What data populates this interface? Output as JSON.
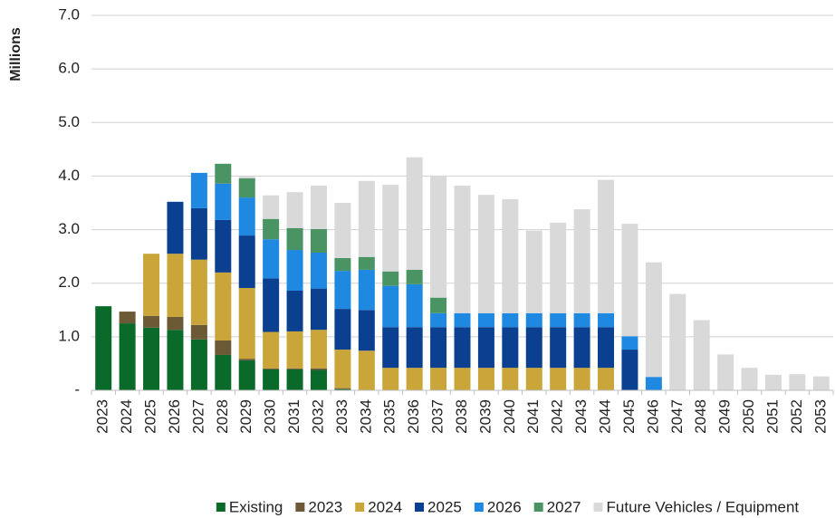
{
  "chart_data": {
    "type": "stacked_bar",
    "y_axis_label": "Millions",
    "categories": [
      "2023",
      "2024",
      "2025",
      "2026",
      "2027",
      "2028",
      "2029",
      "2030",
      "2031",
      "2032",
      "2033",
      "2034",
      "2035",
      "2036",
      "2037",
      "2038",
      "2039",
      "2040",
      "2041",
      "2042",
      "2043",
      "2044",
      "2045",
      "2046",
      "2047",
      "2048",
      "2049",
      "2050",
      "2051",
      "2052",
      "2053"
    ],
    "series": [
      {
        "name": "Existing",
        "color": "#0a6a2a",
        "values": [
          1.57,
          1.25,
          1.17,
          1.13,
          0.95,
          0.66,
          0.56,
          0.39,
          0.39,
          0.38,
          0.02,
          0,
          0,
          0,
          0,
          0,
          0,
          0,
          0,
          0,
          0,
          0,
          0,
          0,
          0,
          0,
          0,
          0,
          0,
          0,
          0
        ]
      },
      {
        "name": "2023",
        "color": "#6b5a35",
        "values": [
          0,
          0.22,
          0.22,
          0.24,
          0.27,
          0.27,
          0.03,
          0.02,
          0.02,
          0.03,
          0.02,
          0,
          0,
          0,
          0,
          0,
          0,
          0,
          0,
          0,
          0,
          0,
          0,
          0,
          0,
          0,
          0,
          0,
          0,
          0,
          0
        ]
      },
      {
        "name": "2024",
        "color": "#c9a53a",
        "values": [
          0,
          0,
          1.16,
          1.18,
          1.22,
          1.27,
          1.32,
          0.68,
          0.69,
          0.72,
          0.72,
          0.74,
          0.42,
          0.42,
          0.42,
          0.42,
          0.42,
          0.42,
          0.42,
          0.42,
          0.42,
          0.42,
          0,
          0,
          0,
          0,
          0,
          0,
          0,
          0,
          0
        ]
      },
      {
        "name": "2025",
        "color": "#0b3f8f",
        "values": [
          0,
          0,
          0,
          0.97,
          0.96,
          0.98,
          0.98,
          1.0,
          0.76,
          0.77,
          0.76,
          0.76,
          0.76,
          0.76,
          0.76,
          0.76,
          0.76,
          0.76,
          0.76,
          0.76,
          0.76,
          0.76,
          0.76,
          0,
          0,
          0,
          0,
          0,
          0,
          0,
          0
        ]
      },
      {
        "name": "2026",
        "color": "#1f88e0",
        "values": [
          0,
          0,
          0,
          0,
          0.66,
          0.68,
          0.71,
          0.73,
          0.76,
          0.67,
          0.71,
          0.75,
          0.77,
          0.8,
          0.26,
          0.26,
          0.26,
          0.26,
          0.26,
          0.26,
          0.26,
          0.26,
          0.25,
          0.25,
          0,
          0,
          0,
          0,
          0,
          0,
          0
        ]
      },
      {
        "name": "2027",
        "color": "#4a9463",
        "values": [
          0,
          0,
          0,
          0,
          0,
          0.37,
          0.36,
          0.38,
          0.41,
          0.44,
          0.24,
          0.24,
          0.27,
          0.27,
          0.29,
          0,
          0,
          0,
          0,
          0,
          0,
          0,
          0,
          0,
          0,
          0,
          0,
          0,
          0,
          0,
          0
        ]
      },
      {
        "name": "Future Vehicles / Equipment",
        "color": "#d9d9d9",
        "values": [
          0,
          0,
          0,
          0,
          0,
          0,
          0.04,
          0.44,
          0.67,
          0.81,
          1.03,
          1.42,
          1.62,
          2.1,
          2.28,
          2.38,
          2.21,
          2.13,
          1.54,
          1.69,
          1.94,
          2.49,
          2.1,
          2.14,
          1.8,
          1.31,
          0.67,
          0.42,
          0.29,
          0.3,
          0.26
        ]
      }
    ],
    "ylim": [
      0,
      7
    ],
    "yticks": [
      {
        "value": 0,
        "label": "-"
      },
      {
        "value": 1,
        "label": "1.0"
      },
      {
        "value": 2,
        "label": "2.0"
      },
      {
        "value": 3,
        "label": "3.0"
      },
      {
        "value": 4,
        "label": "4.0"
      },
      {
        "value": 5,
        "label": "5.0"
      },
      {
        "value": 6,
        "label": "6.0"
      },
      {
        "value": 7,
        "label": "7.0"
      }
    ],
    "grid": true,
    "legend": "bottom"
  }
}
